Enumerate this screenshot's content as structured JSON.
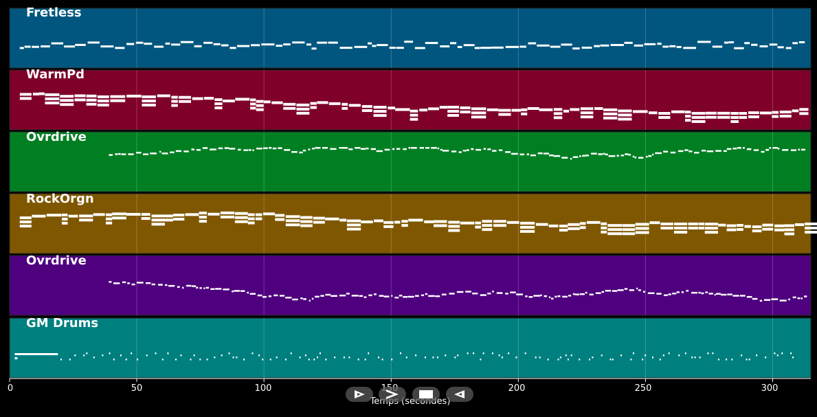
{
  "time_axis": {
    "label": "Temps (secondes)",
    "ticks": [
      0,
      50,
      100,
      150,
      200,
      250,
      300
    ],
    "range": [
      0,
      315
    ]
  },
  "tracks": [
    {
      "name": "Fretless",
      "color": "#00567f",
      "style": "bass"
    },
    {
      "name": "WarmPd",
      "color": "#7f0029",
      "style": "chords"
    },
    {
      "name": "Ovrdrive",
      "color": "#007f22",
      "style": "lead"
    },
    {
      "name": "RockOrgn",
      "color": "#7f5700",
      "style": "chords"
    },
    {
      "name": "Ovrdrive",
      "color": "#4f007f",
      "style": "lead"
    },
    {
      "name": "GM Drums",
      "color": "#007f7f",
      "style": "drums"
    }
  ],
  "playback_controls": [
    {
      "name": "play",
      "icon": "play-icon"
    },
    {
      "name": "fast-forward",
      "icon": "fast-forward-icon"
    },
    {
      "name": "stop",
      "icon": "stop-icon"
    },
    {
      "name": "rewind",
      "icon": "rewind-icon"
    }
  ]
}
